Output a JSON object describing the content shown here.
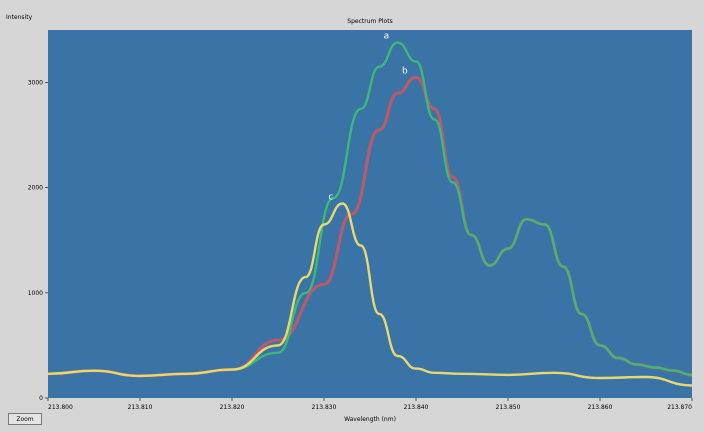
{
  "chart_data": {
    "type": "line",
    "title": "Spectrum Plots",
    "ylabel": "Intensity",
    "xlabel": "Wavelength (nm)",
    "xlim": [
      213.8,
      213.87
    ],
    "ylim": [
      0,
      3500
    ],
    "x_ticks": [
      "213.800",
      "213.810",
      "213.820",
      "213.830",
      "213.840",
      "213.850",
      "213.860",
      "213.870"
    ],
    "y_ticks": [
      {
        "value": 0,
        "label": "0"
      },
      {
        "value": 1000,
        "label": "1000"
      },
      {
        "value": 2000,
        "label": "2000"
      },
      {
        "value": 3000,
        "label": "3000"
      }
    ],
    "grid": false,
    "legend": "top-left",
    "background": "#3a73a6",
    "series": [
      {
        "name": "",
        "color": "#b85a6a",
        "annotation": "b",
        "x": [
          213.8,
          213.805,
          213.81,
          213.815,
          213.82,
          213.825,
          213.83,
          213.833,
          213.836,
          213.838,
          213.84,
          213.842,
          213.844,
          213.846,
          213.848,
          213.85,
          213.852,
          213.854,
          213.856,
          213.858,
          213.86,
          213.862,
          213.864,
          213.866,
          213.868,
          213.87
        ],
        "y": [
          230,
          260,
          210,
          230,
          270,
          550,
          1080,
          1750,
          2550,
          2900,
          3050,
          2750,
          2100,
          1550,
          1260,
          1420,
          1700,
          1650,
          1250,
          800,
          500,
          380,
          320,
          290,
          260,
          220
        ]
      },
      {
        "name": "",
        "color": "#3cb87a",
        "annotation": "a",
        "x": [
          213.8,
          213.805,
          213.81,
          213.815,
          213.82,
          213.825,
          213.828,
          213.831,
          213.834,
          213.836,
          213.838,
          213.84,
          213.842,
          213.844,
          213.846,
          213.848,
          213.85,
          213.852,
          213.854,
          213.856,
          213.858,
          213.86,
          213.862,
          213.864,
          213.866,
          213.868,
          213.87
        ],
        "y": [
          230,
          260,
          210,
          230,
          270,
          430,
          1000,
          1900,
          2750,
          3150,
          3380,
          3200,
          2650,
          2050,
          1550,
          1260,
          1420,
          1700,
          1650,
          1250,
          800,
          500,
          380,
          320,
          290,
          260,
          220
        ]
      },
      {
        "name": "",
        "color": "#e8d870",
        "annotation": "c",
        "x": [
          213.8,
          213.805,
          213.81,
          213.815,
          213.82,
          213.825,
          213.828,
          213.83,
          213.832,
          213.834,
          213.836,
          213.838,
          213.84,
          213.842,
          213.845,
          213.85,
          213.855,
          213.86,
          213.865,
          213.87
        ],
        "y": [
          230,
          260,
          210,
          230,
          270,
          500,
          1150,
          1650,
          1850,
          1450,
          800,
          400,
          280,
          240,
          230,
          220,
          240,
          190,
          200,
          120
        ]
      }
    ]
  },
  "ui": {
    "zoom_label": "Zoom"
  }
}
